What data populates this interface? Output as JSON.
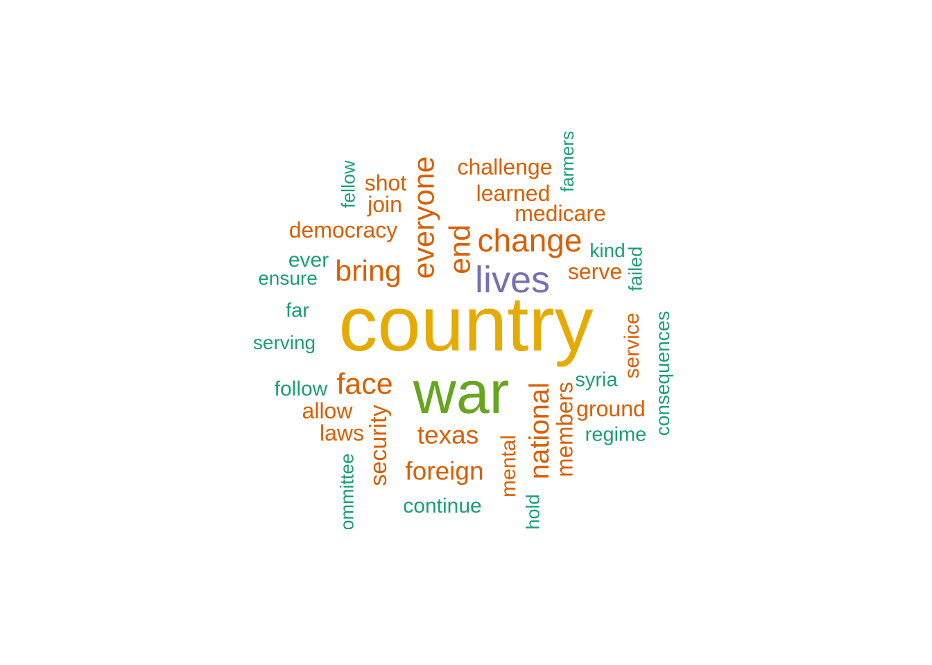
{
  "palette": {
    "green": "#1b9e77",
    "orange": "#d95f02",
    "purple": "#7570b3",
    "olive": "#66a61e",
    "gold": "#e6ab02"
  },
  "words": [
    {
      "text": "country",
      "color": "#e6ab02"
    },
    {
      "text": "war",
      "color": "#66a61e"
    },
    {
      "text": "lives",
      "color": "#7570b3"
    },
    {
      "text": "change",
      "color": "#d95f02"
    },
    {
      "text": "bring",
      "color": "#d95f02"
    },
    {
      "text": "face",
      "color": "#d95f02"
    },
    {
      "text": "texas",
      "color": "#d95f02"
    },
    {
      "text": "foreign",
      "color": "#d95f02"
    },
    {
      "text": "everyone",
      "color": "#d95f02"
    },
    {
      "text": "end",
      "color": "#d95f02"
    },
    {
      "text": "national",
      "color": "#d95f02"
    },
    {
      "text": "members",
      "color": "#d95f02"
    },
    {
      "text": "security",
      "color": "#d95f02"
    },
    {
      "text": "challenge",
      "color": "#d95f02"
    },
    {
      "text": "learned",
      "color": "#d95f02"
    },
    {
      "text": "medicare",
      "color": "#d95f02"
    },
    {
      "text": "democracy",
      "color": "#d95f02"
    },
    {
      "text": "shot",
      "color": "#d95f02"
    },
    {
      "text": "join",
      "color": "#d95f02"
    },
    {
      "text": "serve",
      "color": "#d95f02"
    },
    {
      "text": "ground",
      "color": "#d95f02"
    },
    {
      "text": "allow",
      "color": "#d95f02"
    },
    {
      "text": "laws",
      "color": "#d95f02"
    },
    {
      "text": "service",
      "color": "#d95f02"
    },
    {
      "text": "mental",
      "color": "#d95f02"
    },
    {
      "text": "continue",
      "color": "#1b9e77"
    },
    {
      "text": "regime",
      "color": "#1b9e77"
    },
    {
      "text": "syria",
      "color": "#1b9e77"
    },
    {
      "text": "follow",
      "color": "#1b9e77"
    },
    {
      "text": "serving",
      "color": "#1b9e77"
    },
    {
      "text": "far",
      "color": "#1b9e77"
    },
    {
      "text": "ensure",
      "color": "#1b9e77"
    },
    {
      "text": "ever",
      "color": "#1b9e77"
    },
    {
      "text": "kind",
      "color": "#1b9e77"
    },
    {
      "text": "failed",
      "color": "#1b9e77"
    },
    {
      "text": "farmers",
      "color": "#1b9e77"
    },
    {
      "text": "fellow",
      "color": "#1b9e77"
    },
    {
      "text": "consequences",
      "color": "#1b9e77"
    },
    {
      "text": "ommittee",
      "color": "#1b9e77"
    },
    {
      "text": "hold",
      "color": "#1b9e77"
    }
  ]
}
